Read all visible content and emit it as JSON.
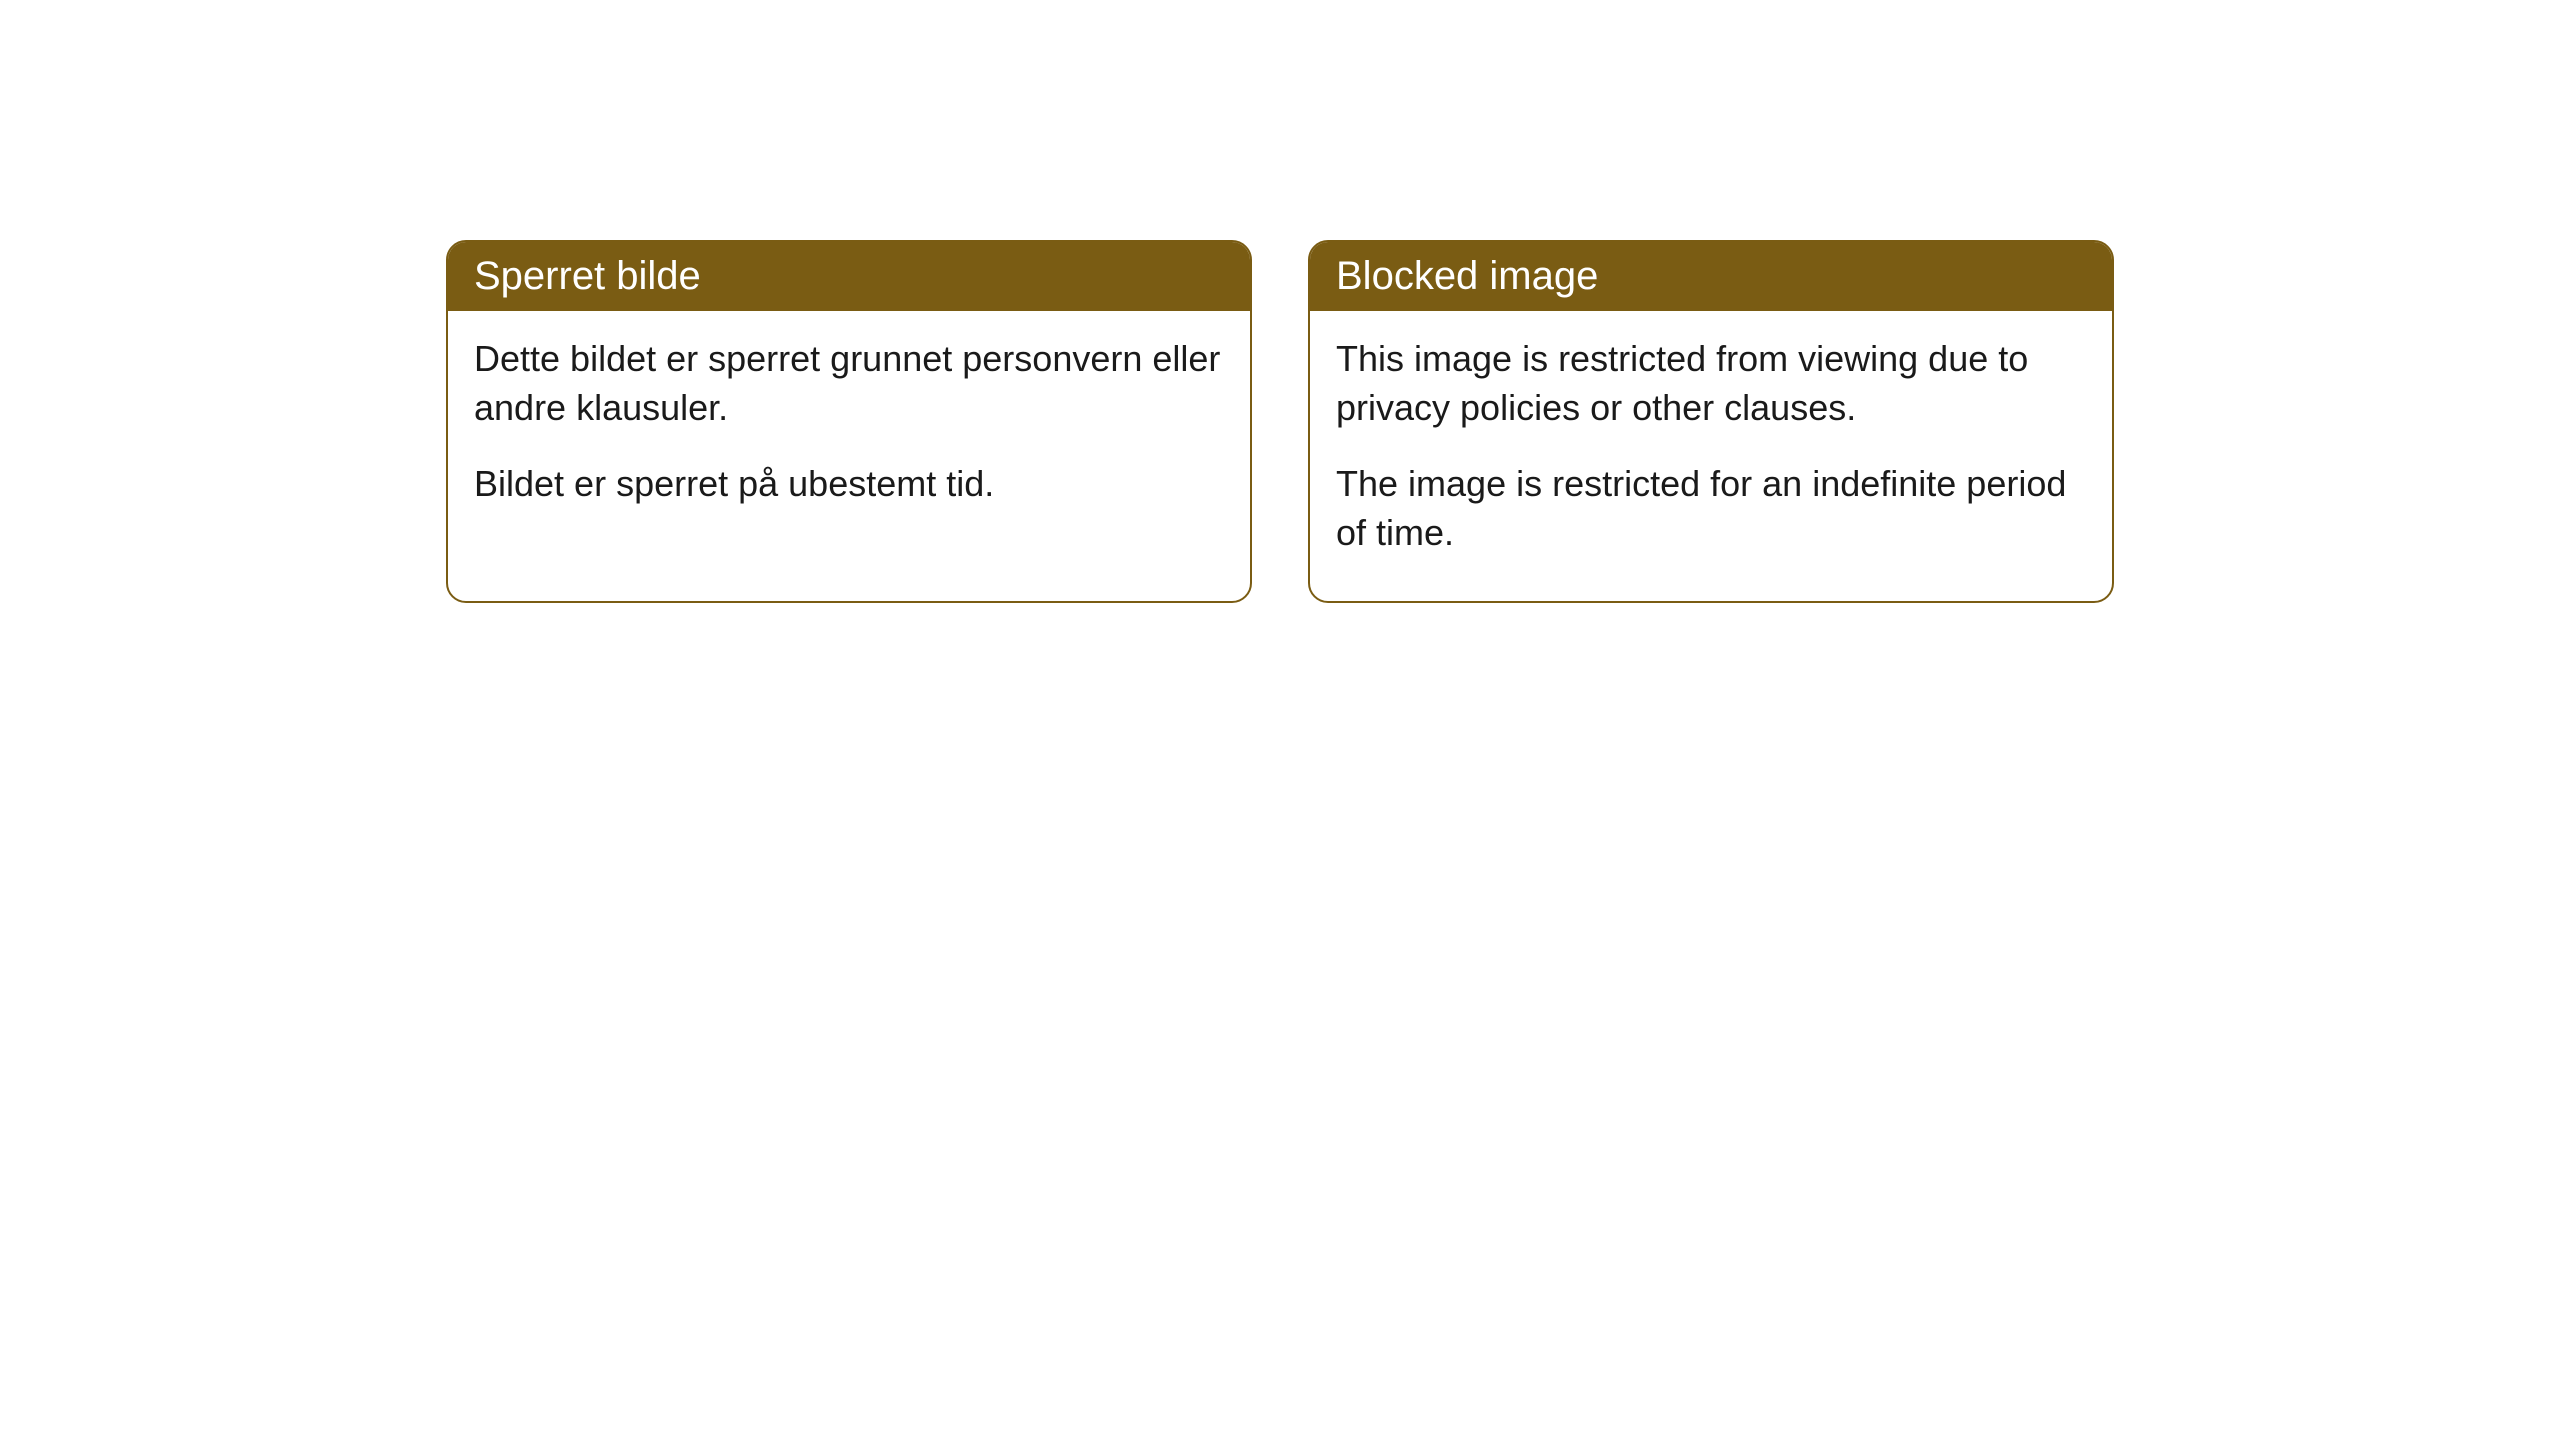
{
  "cards": [
    {
      "title": "Sperret bilde",
      "paragraph1": "Dette bildet er sperret grunnet personvern eller andre klausuler.",
      "paragraph2": "Bildet er sperret på ubestemt tid."
    },
    {
      "title": "Blocked image",
      "paragraph1": "This image is restricted from viewing due to privacy policies or other clauses.",
      "paragraph2": "The image is restricted for an indefinite period of time."
    }
  ],
  "style": {
    "header_background_color": "#7a5c13",
    "header_text_color": "#ffffff",
    "body_text_color": "#1a1a1a",
    "card_border_color": "#7a5c13",
    "card_background_color": "#ffffff",
    "border_radius": 20,
    "header_fontsize": 40,
    "body_fontsize": 36
  }
}
